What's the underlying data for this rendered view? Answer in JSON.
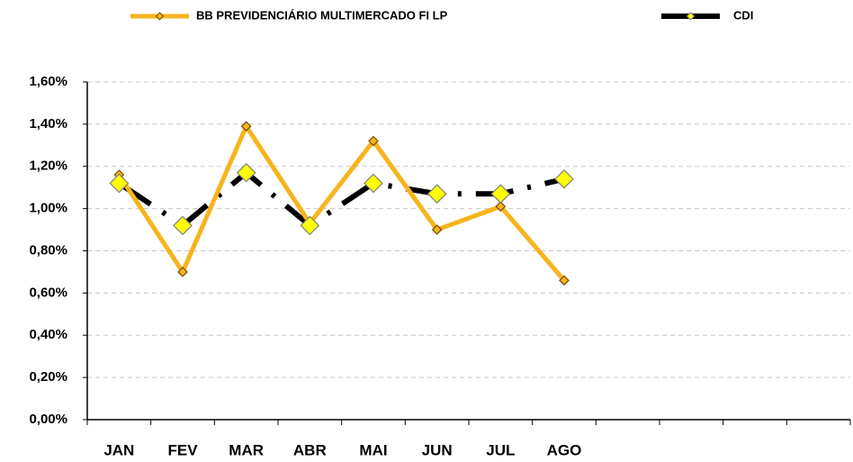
{
  "chart_data": {
    "type": "line",
    "categories": [
      "JAN",
      "FEV",
      "MAR",
      "ABR",
      "MAI",
      "JUN",
      "JUL",
      "AGO",
      null,
      null,
      null,
      null
    ],
    "series": [
      {
        "name": "BB PREVIDENCIÁRIO MULTIMERCADO FI LP",
        "color": "#f7b41c",
        "values": [
          1.16,
          0.7,
          1.39,
          0.93,
          1.32,
          0.9,
          1.01,
          0.66,
          null,
          null,
          null,
          null
        ]
      },
      {
        "name": "CDI",
        "color": "#000000",
        "values": [
          1.12,
          0.92,
          1.17,
          0.92,
          1.12,
          1.07,
          1.07,
          1.14,
          null,
          null,
          null,
          null
        ]
      }
    ],
    "ylim": [
      0,
      1.6
    ],
    "yticks": [
      {
        "value": 0,
        "label": "0,00%"
      },
      {
        "value": 0.2,
        "label": "0,20%"
      },
      {
        "value": 0.4,
        "label": "0,40%"
      },
      {
        "value": 0.6,
        "label": "0,60%"
      },
      {
        "value": 0.8,
        "label": "0,80%"
      },
      {
        "value": 1.0,
        "label": "1,00%"
      },
      {
        "value": 1.2,
        "label": "1,20%"
      },
      {
        "value": 1.4,
        "label": "1,40%"
      },
      {
        "value": 1.6,
        "label": "1,60%"
      }
    ],
    "grid": true,
    "legend": "top"
  }
}
